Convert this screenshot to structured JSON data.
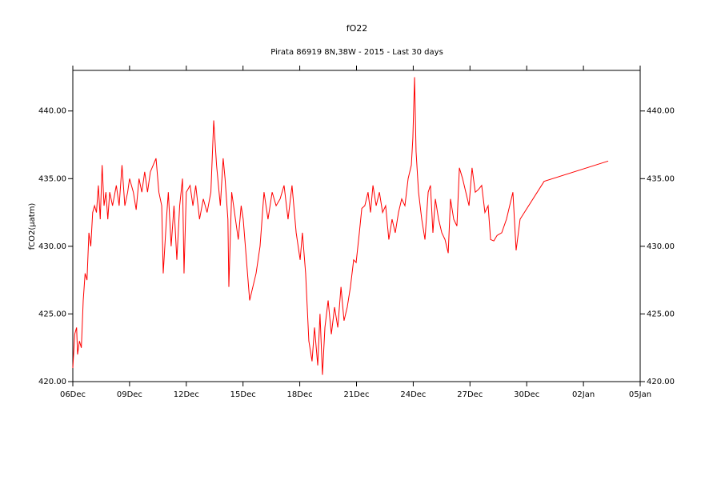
{
  "chart_data": {
    "type": "line",
    "title": "fO22",
    "subtitle": "Pirata 86919 8N,38W - 2015 - Last 30 days",
    "y_label": "fCO2(µatm)",
    "xlim": [
      0,
      30
    ],
    "xticks": [
      {
        "value": 0,
        "label": "06Dec"
      },
      {
        "value": 3,
        "label": "09Dec"
      },
      {
        "value": 6,
        "label": "12Dec"
      },
      {
        "value": 9,
        "label": "15Dec"
      },
      {
        "value": 12,
        "label": "18Dec"
      },
      {
        "value": 15,
        "label": "21Dec"
      },
      {
        "value": 18,
        "label": "24Dec"
      },
      {
        "value": 21,
        "label": "27Dec"
      },
      {
        "value": 24,
        "label": "30Dec"
      },
      {
        "value": 27,
        "label": "02Jan"
      },
      {
        "value": 30,
        "label": "05Jan"
      }
    ],
    "ylim": [
      420,
      443
    ],
    "yticks": [
      {
        "value": 420,
        "label": "420.00"
      },
      {
        "value": 425,
        "label": "425.00"
      },
      {
        "value": 430,
        "label": "430.00"
      },
      {
        "value": 435,
        "label": "435.00"
      },
      {
        "value": 440,
        "label": "440.00"
      }
    ],
    "right_axis": true,
    "series": [
      {
        "name": "fCO2",
        "color": "#ff0000",
        "x": [
          0,
          0.1,
          0.2,
          0.25,
          0.35,
          0.45,
          0.55,
          0.65,
          0.75,
          0.85,
          0.95,
          1.05,
          1.15,
          1.25,
          1.35,
          1.45,
          1.55,
          1.65,
          1.75,
          1.85,
          1.95,
          2.1,
          2.3,
          2.45,
          2.6,
          2.75,
          2.9,
          3.0,
          3.2,
          3.35,
          3.5,
          3.65,
          3.8,
          3.95,
          4.1,
          4.25,
          4.4,
          4.55,
          4.7,
          4.78,
          4.95,
          5.05,
          5.2,
          5.35,
          5.5,
          5.65,
          5.8,
          5.88,
          6.0,
          6.2,
          6.35,
          6.5,
          6.7,
          6.9,
          7.1,
          7.3,
          7.45,
          7.6,
          7.8,
          7.95,
          8.05,
          8.2,
          8.25,
          8.4,
          8.6,
          8.75,
          8.9,
          9.01,
          9.35,
          9.69,
          9.9,
          10.11,
          10.32,
          10.54,
          10.75,
          10.96,
          11.17,
          11.38,
          11.59,
          11.81,
          12.02,
          12.14,
          12.31,
          12.48,
          12.65,
          12.78,
          12.95,
          13.07,
          13.2,
          13.33,
          13.5,
          13.67,
          13.84,
          14.01,
          14.18,
          14.34,
          14.51,
          14.68,
          14.85,
          14.98,
          15.15,
          15.28,
          15.44,
          15.61,
          15.74,
          15.87,
          16.04,
          16.21,
          16.38,
          16.54,
          16.71,
          16.88,
          17.05,
          17.22,
          17.39,
          17.56,
          17.73,
          17.9,
          17.98,
          18.07,
          18.15,
          18.28,
          18.45,
          18.62,
          18.79,
          18.91,
          19.04,
          19.17,
          19.34,
          19.51,
          19.68,
          19.85,
          19.97,
          20.14,
          20.31,
          20.44,
          20.61,
          20.78,
          20.95,
          21.11,
          21.28,
          21.45,
          21.62,
          21.79,
          21.96,
          22.09,
          22.26,
          22.43,
          22.68,
          22.93,
          23.27,
          23.44,
          23.65,
          24.92,
          28.31
        ],
        "values": [
          421,
          423.5,
          424,
          422,
          423,
          422.5,
          426,
          428,
          427.5,
          431,
          430,
          432.5,
          433,
          432.5,
          434.5,
          432,
          436,
          433,
          434,
          432,
          434,
          433,
          434.5,
          433,
          436,
          433,
          434,
          435,
          434,
          432.7,
          435,
          434,
          435.5,
          434,
          435.5,
          436,
          436.5,
          434,
          433,
          428,
          432,
          434,
          430,
          433,
          429,
          433,
          435,
          428,
          434,
          434.5,
          433,
          434.5,
          432,
          433.5,
          432.5,
          434,
          439.3,
          436,
          433,
          436.5,
          435,
          432,
          427,
          434,
          432,
          430.5,
          433,
          432,
          426,
          428,
          430,
          434,
          432,
          434,
          433,
          433.5,
          434.5,
          432,
          434.5,
          431,
          429,
          431,
          428,
          423,
          421.5,
          424,
          421.2,
          425,
          420.5,
          424,
          426,
          423.5,
          425.5,
          424,
          427,
          424.5,
          425.5,
          427,
          429,
          428.8,
          431,
          432.8,
          433,
          434,
          432.5,
          434.5,
          433,
          434,
          432.5,
          433,
          430.5,
          432,
          431,
          432.5,
          433.5,
          433,
          435,
          436,
          438,
          442.5,
          437,
          434,
          432,
          430.5,
          434,
          434.5,
          431,
          433.5,
          432,
          431,
          430.5,
          429.5,
          433.5,
          432,
          431.5,
          435.8,
          435,
          434,
          433,
          435.8,
          434,
          434.2,
          434.5,
          432.5,
          433,
          430.5,
          430.4,
          430.8,
          431,
          432,
          434,
          429.7,
          432,
          434.8,
          436.3
        ]
      }
    ]
  }
}
